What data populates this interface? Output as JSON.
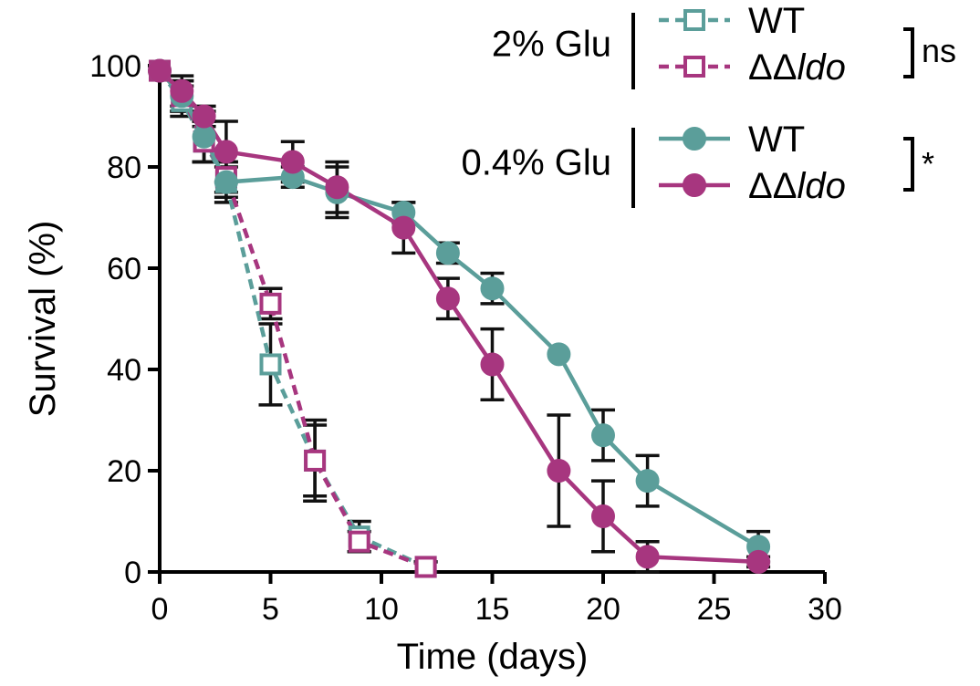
{
  "chart_data": {
    "type": "line",
    "title": "",
    "xlabel": "Time (days)",
    "ylabel": "Survival (%)",
    "xlim": [
      0,
      30
    ],
    "ylim": [
      0,
      100
    ],
    "xticks": [
      0,
      5,
      10,
      15,
      20,
      25,
      30
    ],
    "yticks": [
      0,
      20,
      40,
      60,
      80,
      100
    ],
    "colors": {
      "wt": "#5b9e9a",
      "ldo": "#a7367f",
      "error_bar": "#111111",
      "axis": "#000000"
    },
    "legend": {
      "placement": "top-right",
      "groups": [
        {
          "condition": "2% Glu",
          "marker": "open-square",
          "line": "dashed",
          "significance": "ns",
          "entries": [
            {
              "prefix": "",
              "italic": "",
              "text": "WT",
              "series": "wt_2"
            },
            {
              "prefix": "ΔΔ",
              "italic": "ldo",
              "text": "",
              "series": "ldo_2"
            }
          ]
        },
        {
          "condition": "0.4% Glu",
          "marker": "filled-circle",
          "line": "solid",
          "significance": "*",
          "entries": [
            {
              "prefix": "",
              "italic": "",
              "text": "WT",
              "series": "wt_04"
            },
            {
              "prefix": "ΔΔ",
              "italic": "ldo",
              "text": "",
              "series": "ldo_04"
            }
          ]
        }
      ]
    },
    "series": [
      {
        "id": "wt_2",
        "name": "WT (2% Glu)",
        "color": "#5b9e9a",
        "marker": "open-square",
        "line": "dashed",
        "x": [
          0,
          1,
          2,
          3,
          5,
          7,
          9,
          12
        ],
        "values": [
          99,
          93,
          85,
          77,
          41,
          22,
          7,
          1
        ],
        "err": [
          0,
          3,
          4,
          3,
          8,
          8,
          3,
          1
        ]
      },
      {
        "id": "ldo_2",
        "name": "ΔΔldo (2% Glu)",
        "color": "#a7367f",
        "marker": "open-square",
        "line": "dashed",
        "x": [
          0,
          1,
          2,
          3,
          5,
          7,
          9,
          12
        ],
        "values": [
          99,
          94,
          85,
          78,
          53,
          22,
          6,
          1
        ],
        "err": [
          0,
          3,
          4,
          3,
          3,
          7,
          2,
          1
        ]
      },
      {
        "id": "wt_04",
        "name": "WT (0.4% Glu)",
        "color": "#5b9e9a",
        "marker": "filled-circle",
        "line": "solid",
        "x": [
          0,
          1,
          2,
          3,
          6,
          8,
          11,
          13,
          15,
          18,
          20,
          22,
          27
        ],
        "values": [
          99,
          94,
          86,
          77,
          78,
          75,
          71,
          63,
          56,
          43,
          27,
          18,
          5
        ],
        "err": [
          0,
          3,
          5,
          4,
          2,
          5,
          2,
          2,
          3,
          0,
          5,
          5,
          3
        ]
      },
      {
        "id": "ldo_04",
        "name": "ΔΔldo (0.4% Glu)",
        "color": "#a7367f",
        "marker": "filled-circle",
        "line": "solid",
        "x": [
          0,
          1,
          2,
          3,
          6,
          8,
          11,
          13,
          15,
          18,
          20,
          22,
          27
        ],
        "values": [
          99,
          95,
          90,
          83,
          81,
          76,
          68,
          54,
          41,
          20,
          11,
          3,
          2
        ],
        "err": [
          0,
          3,
          2,
          6,
          4,
          5,
          5,
          4,
          7,
          11,
          7,
          3,
          1
        ]
      }
    ]
  }
}
